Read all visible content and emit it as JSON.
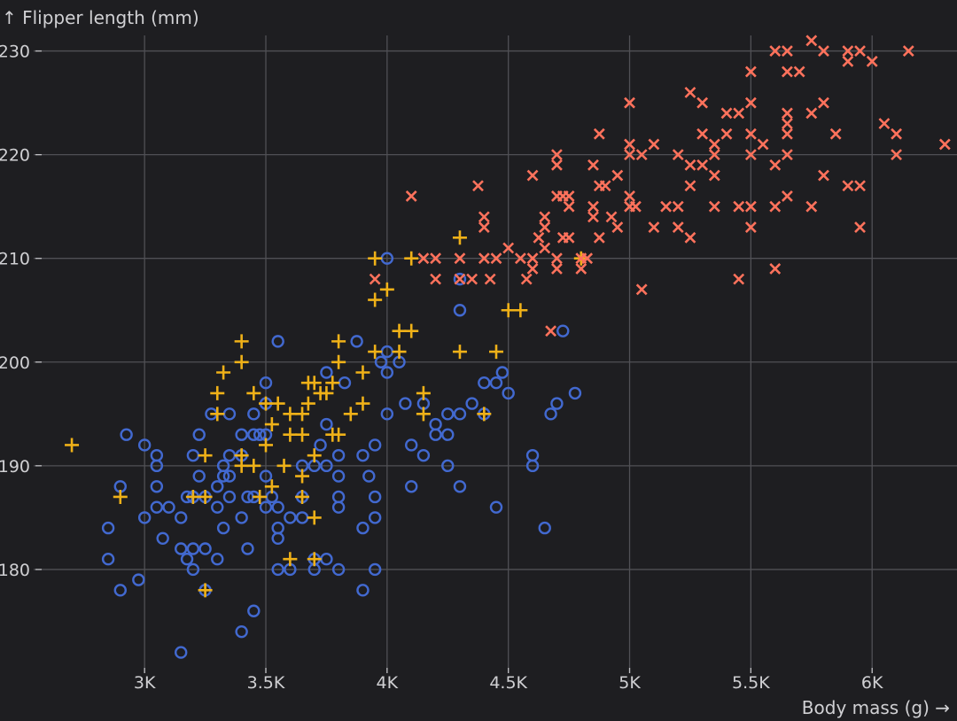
{
  "chart_data": {
    "type": "scatter",
    "xlabel": "Body mass (g) →",
    "ylabel": "↑ Flipper length (mm)",
    "xlim": [
      2550,
      6350
    ],
    "ylim": [
      170,
      231.5
    ],
    "grid": true,
    "x_ticks": [
      3000,
      3500,
      4000,
      4500,
      5000,
      5500,
      6000
    ],
    "x_tick_labels": [
      "3K",
      "3.5K",
      "4K",
      "4.5K",
      "5K",
      "5.5K",
      "6K"
    ],
    "y_ticks": [
      180,
      190,
      200,
      210,
      220,
      230
    ],
    "y_tick_labels": [
      "180",
      "190",
      "200",
      "210",
      "220",
      "230"
    ],
    "series": [
      {
        "symbol": "circle",
        "color": "#4269d0",
        "points": [
          [
            2850,
            184
          ],
          [
            2850,
            181
          ],
          [
            2900,
            188
          ],
          [
            2900,
            178
          ],
          [
            2925,
            193
          ],
          [
            2975,
            179
          ],
          [
            3000,
            192
          ],
          [
            3000,
            185
          ],
          [
            3050,
            191
          ],
          [
            3050,
            190
          ],
          [
            3050,
            188
          ],
          [
            3050,
            186
          ],
          [
            3075,
            183
          ],
          [
            3100,
            186
          ],
          [
            3150,
            185
          ],
          [
            3150,
            182
          ],
          [
            3150,
            172
          ],
          [
            3175,
            187
          ],
          [
            3175,
            181
          ],
          [
            3200,
            191
          ],
          [
            3200,
            187
          ],
          [
            3200,
            182
          ],
          [
            3200,
            180
          ],
          [
            3225,
            193
          ],
          [
            3225,
            189
          ],
          [
            3250,
            187
          ],
          [
            3250,
            182
          ],
          [
            3250,
            178
          ],
          [
            3275,
            195
          ],
          [
            3300,
            188
          ],
          [
            3300,
            186
          ],
          [
            3300,
            181
          ],
          [
            3325,
            184
          ],
          [
            3325,
            190
          ],
          [
            3325,
            189
          ],
          [
            3350,
            187
          ],
          [
            3350,
            191
          ],
          [
            3350,
            189
          ],
          [
            3350,
            195
          ],
          [
            3400,
            174
          ],
          [
            3400,
            191
          ],
          [
            3400,
            193
          ],
          [
            3400,
            185
          ],
          [
            3425,
            187
          ],
          [
            3425,
            182
          ],
          [
            3450,
            195
          ],
          [
            3450,
            193
          ],
          [
            3450,
            187
          ],
          [
            3450,
            176
          ],
          [
            3475,
            193
          ],
          [
            3500,
            198
          ],
          [
            3500,
            196
          ],
          [
            3500,
            193
          ],
          [
            3500,
            189
          ],
          [
            3500,
            186
          ],
          [
            3525,
            187
          ],
          [
            3550,
            186
          ],
          [
            3550,
            184
          ],
          [
            3550,
            183
          ],
          [
            3550,
            180
          ],
          [
            3550,
            202
          ],
          [
            3600,
            185
          ],
          [
            3600,
            180
          ],
          [
            3650,
            190
          ],
          [
            3650,
            187
          ],
          [
            3650,
            185
          ],
          [
            3700,
            190
          ],
          [
            3700,
            180
          ],
          [
            3700,
            181
          ],
          [
            3725,
            192
          ],
          [
            3750,
            199
          ],
          [
            3750,
            194
          ],
          [
            3750,
            190
          ],
          [
            3750,
            181
          ],
          [
            3800,
            191
          ],
          [
            3800,
            189
          ],
          [
            3800,
            187
          ],
          [
            3800,
            186
          ],
          [
            3800,
            180
          ],
          [
            3825,
            198
          ],
          [
            3875,
            202
          ],
          [
            3900,
            191
          ],
          [
            3900,
            184
          ],
          [
            3900,
            178
          ],
          [
            3925,
            189
          ],
          [
            3950,
            192
          ],
          [
            3950,
            187
          ],
          [
            3950,
            185
          ],
          [
            3950,
            180
          ],
          [
            3975,
            200
          ],
          [
            4000,
            201
          ],
          [
            4000,
            199
          ],
          [
            4000,
            195
          ],
          [
            4000,
            210
          ],
          [
            4050,
            200
          ],
          [
            4075,
            196
          ],
          [
            4100,
            192
          ],
          [
            4100,
            188
          ],
          [
            4150,
            196
          ],
          [
            4150,
            191
          ],
          [
            4200,
            194
          ],
          [
            4200,
            193
          ],
          [
            4250,
            195
          ],
          [
            4250,
            193
          ],
          [
            4250,
            190
          ],
          [
            4300,
            208
          ],
          [
            4300,
            205
          ],
          [
            4300,
            195
          ],
          [
            4300,
            188
          ],
          [
            4350,
            196
          ],
          [
            4400,
            198
          ],
          [
            4400,
            195
          ],
          [
            4450,
            198
          ],
          [
            4450,
            186
          ],
          [
            4475,
            199
          ],
          [
            4500,
            197
          ],
          [
            4600,
            191
          ],
          [
            4600,
            190
          ],
          [
            4650,
            184
          ],
          [
            4675,
            195
          ],
          [
            4700,
            196
          ],
          [
            4725,
            203
          ],
          [
            4775,
            197
          ]
        ]
      },
      {
        "symbol": "plus",
        "color": "#efb118",
        "points": [
          [
            2700,
            192
          ],
          [
            2900,
            187
          ],
          [
            3200,
            187
          ],
          [
            3250,
            191
          ],
          [
            3250,
            187
          ],
          [
            3250,
            178
          ],
          [
            3300,
            197
          ],
          [
            3300,
            195
          ],
          [
            3325,
            199
          ],
          [
            3400,
            202
          ],
          [
            3400,
            200
          ],
          [
            3400,
            191
          ],
          [
            3400,
            190
          ],
          [
            3450,
            197
          ],
          [
            3450,
            190
          ],
          [
            3475,
            187
          ],
          [
            3500,
            196
          ],
          [
            3500,
            192
          ],
          [
            3525,
            194
          ],
          [
            3525,
            188
          ],
          [
            3550,
            196
          ],
          [
            3575,
            190
          ],
          [
            3600,
            195
          ],
          [
            3600,
            193
          ],
          [
            3600,
            181
          ],
          [
            3650,
            195
          ],
          [
            3650,
            193
          ],
          [
            3650,
            187
          ],
          [
            3650,
            189
          ],
          [
            3675,
            196
          ],
          [
            3675,
            198
          ],
          [
            3700,
            198
          ],
          [
            3700,
            191
          ],
          [
            3700,
            185
          ],
          [
            3700,
            181
          ],
          [
            3725,
            197
          ],
          [
            3750,
            197
          ],
          [
            3775,
            193
          ],
          [
            3775,
            198
          ],
          [
            3800,
            202
          ],
          [
            3800,
            200
          ],
          [
            3800,
            193
          ],
          [
            3850,
            195
          ],
          [
            3900,
            199
          ],
          [
            3900,
            196
          ],
          [
            3950,
            210
          ],
          [
            3950,
            206
          ],
          [
            3950,
            201
          ],
          [
            4000,
            207
          ],
          [
            4050,
            203
          ],
          [
            4050,
            201
          ],
          [
            4100,
            203
          ],
          [
            4100,
            210
          ],
          [
            4150,
            197
          ],
          [
            4150,
            195
          ],
          [
            4300,
            212
          ],
          [
            4300,
            201
          ],
          [
            4400,
            195
          ],
          [
            4450,
            201
          ],
          [
            4500,
            205
          ],
          [
            4550,
            205
          ],
          [
            4800,
            210
          ]
        ]
      },
      {
        "symbol": "cross",
        "color": "#ff725c",
        "points": [
          [
            3950,
            208
          ],
          [
            4100,
            216
          ],
          [
            4150,
            210
          ],
          [
            4200,
            210
          ],
          [
            4200,
            208
          ],
          [
            4300,
            210
          ],
          [
            4300,
            208
          ],
          [
            4350,
            208
          ],
          [
            4375,
            217
          ],
          [
            4400,
            214
          ],
          [
            4400,
            213
          ],
          [
            4400,
            210
          ],
          [
            4425,
            208
          ],
          [
            4450,
            210
          ],
          [
            4500,
            211
          ],
          [
            4550,
            210
          ],
          [
            4575,
            208
          ],
          [
            4600,
            218
          ],
          [
            4600,
            210
          ],
          [
            4600,
            209
          ],
          [
            4625,
            212
          ],
          [
            4650,
            214
          ],
          [
            4650,
            213
          ],
          [
            4650,
            211
          ],
          [
            4675,
            203
          ],
          [
            4700,
            220
          ],
          [
            4700,
            219
          ],
          [
            4700,
            216
          ],
          [
            4700,
            210
          ],
          [
            4700,
            209
          ],
          [
            4725,
            216
          ],
          [
            4725,
            212
          ],
          [
            4750,
            216
          ],
          [
            4750,
            215
          ],
          [
            4750,
            212
          ],
          [
            4800,
            210
          ],
          [
            4800,
            209
          ],
          [
            4825,
            210
          ],
          [
            4850,
            219
          ],
          [
            4850,
            215
          ],
          [
            4850,
            214
          ],
          [
            4875,
            222
          ],
          [
            4875,
            217
          ],
          [
            4875,
            212
          ],
          [
            4900,
            217
          ],
          [
            4925,
            214
          ],
          [
            4950,
            218
          ],
          [
            4950,
            213
          ],
          [
            5000,
            225
          ],
          [
            5000,
            221
          ],
          [
            5000,
            220
          ],
          [
            5000,
            216
          ],
          [
            5000,
            215
          ],
          [
            5025,
            215
          ],
          [
            5050,
            220
          ],
          [
            5050,
            207
          ],
          [
            5100,
            221
          ],
          [
            5100,
            213
          ],
          [
            5150,
            215
          ],
          [
            5200,
            215
          ],
          [
            5200,
            220
          ],
          [
            5200,
            213
          ],
          [
            5250,
            226
          ],
          [
            5250,
            219
          ],
          [
            5250,
            217
          ],
          [
            5250,
            212
          ],
          [
            5300,
            225
          ],
          [
            5300,
            222
          ],
          [
            5300,
            219
          ],
          [
            5350,
            221
          ],
          [
            5350,
            220
          ],
          [
            5350,
            218
          ],
          [
            5350,
            215
          ],
          [
            5400,
            222
          ],
          [
            5400,
            224
          ],
          [
            5450,
            224
          ],
          [
            5450,
            215
          ],
          [
            5450,
            208
          ],
          [
            5500,
            228
          ],
          [
            5500,
            225
          ],
          [
            5500,
            222
          ],
          [
            5500,
            220
          ],
          [
            5500,
            215
          ],
          [
            5500,
            213
          ],
          [
            5550,
            221
          ],
          [
            5600,
            230
          ],
          [
            5600,
            219
          ],
          [
            5600,
            215
          ],
          [
            5600,
            209
          ],
          [
            5650,
            230
          ],
          [
            5650,
            228
          ],
          [
            5650,
            224
          ],
          [
            5650,
            223
          ],
          [
            5650,
            222
          ],
          [
            5650,
            220
          ],
          [
            5650,
            216
          ],
          [
            5700,
            228
          ],
          [
            5750,
            231
          ],
          [
            5750,
            224
          ],
          [
            5750,
            215
          ],
          [
            5800,
            230
          ],
          [
            5800,
            225
          ],
          [
            5800,
            218
          ],
          [
            5850,
            222
          ],
          [
            5900,
            230
          ],
          [
            5900,
            229
          ],
          [
            5900,
            217
          ],
          [
            5950,
            230
          ],
          [
            5950,
            217
          ],
          [
            5950,
            213
          ],
          [
            6000,
            229
          ],
          [
            6050,
            223
          ],
          [
            6100,
            222
          ],
          [
            6100,
            220
          ],
          [
            6150,
            230
          ],
          [
            6300,
            221
          ]
        ]
      }
    ]
  }
}
